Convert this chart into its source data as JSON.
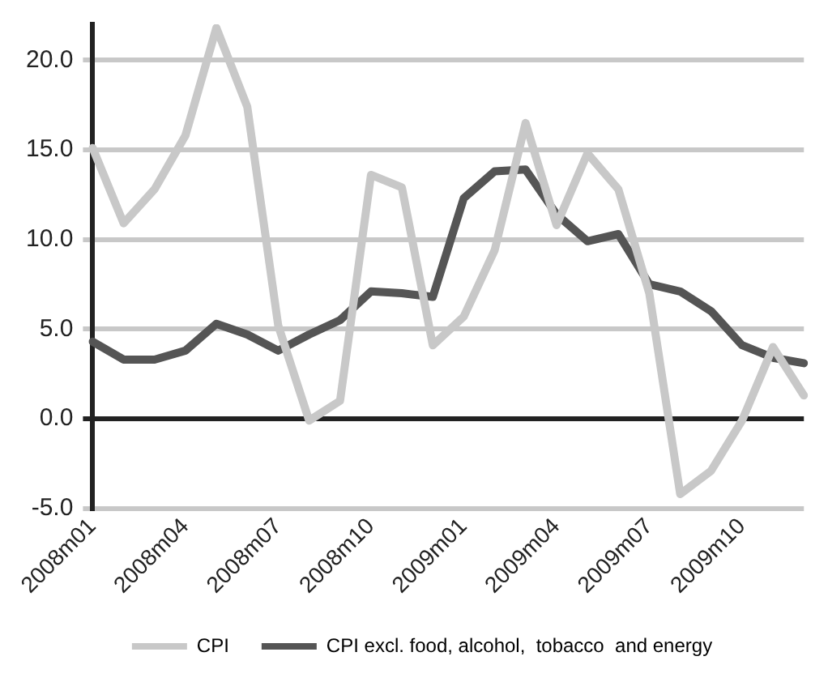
{
  "chart_data": {
    "type": "line",
    "categories": [
      "2008m01",
      null,
      null,
      "2008m04",
      null,
      null,
      "2008m07",
      null,
      null,
      "2008m10",
      null,
      null,
      "2009m01",
      null,
      null,
      "2009m04",
      null,
      null,
      "2009m07",
      null,
      null,
      "2009m10",
      null,
      null
    ],
    "series": [
      {
        "name": "CPI",
        "color": "#c8c8c8",
        "values": [
          15.1,
          10.9,
          12.8,
          15.8,
          21.8,
          17.4,
          5.2,
          -0.1,
          1.0,
          13.6,
          12.9,
          4.1,
          5.7,
          9.4,
          16.5,
          10.8,
          14.8,
          12.8,
          7.0,
          -4.2,
          -2.9,
          -0.1,
          4.0,
          1.3
        ]
      },
      {
        "name": "CPI excl. food, alcohol,  tobacco  and energy",
        "color": "#555555",
        "values": [
          4.3,
          3.3,
          3.3,
          3.8,
          5.3,
          4.7,
          3.8,
          4.7,
          5.5,
          7.1,
          7.0,
          6.8,
          12.3,
          13.8,
          13.9,
          11.4,
          9.9,
          10.3,
          7.5,
          7.1,
          6.0,
          4.1,
          3.4,
          3.1
        ]
      }
    ],
    "ylim": [
      -5,
      22
    ],
    "yticks": [
      {
        "value": -5,
        "label": "-5.0"
      },
      {
        "value": 0,
        "label": "0.0"
      },
      {
        "value": 5,
        "label": "5.0"
      },
      {
        "value": 10,
        "label": "10.0"
      },
      {
        "value": 15,
        "label": "15.0"
      },
      {
        "value": 20,
        "label": "20.0"
      }
    ],
    "grid": "y",
    "legend": "bottom",
    "marker": "none",
    "line_style": "solid"
  }
}
